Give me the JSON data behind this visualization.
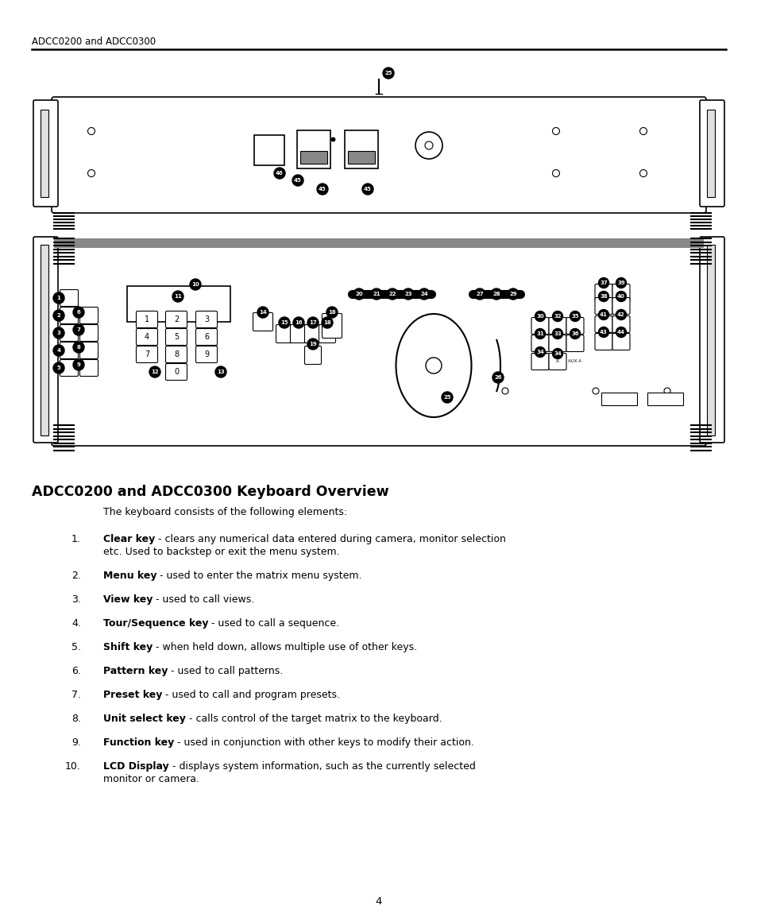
{
  "header_text": "ADCC0200 and ADCC0300",
  "section_title": "ADCC0200 and ADCC0300 Keyboard Overview",
  "intro_text": "The keyboard consists of the following elements:",
  "items": [
    {
      "num": "1.",
      "bold": "Clear key",
      "rest": " - clears any numerical data entered during camera, monitor selection\n   etc. Used to backstep or exit the menu system."
    },
    {
      "num": "2.",
      "bold": "Menu key",
      "rest": " - used to enter the matrix menu system."
    },
    {
      "num": "3.",
      "bold": "View key",
      "rest": " - used to call views."
    },
    {
      "num": "4.",
      "bold": "Tour/Sequence key",
      "rest": " - used to call a sequence."
    },
    {
      "num": "5.",
      "bold": "Shift key",
      "rest": " - when held down, allows multiple use of other keys."
    },
    {
      "num": "6.",
      "bold": "Pattern key",
      "rest": " - used to call patterns."
    },
    {
      "num": "7.",
      "bold": "Preset key",
      "rest": " - used to call and program presets."
    },
    {
      "num": "8.",
      "bold": "Unit select key",
      "rest": " - calls control of the target matrix to the keyboard."
    },
    {
      "num": "9.",
      "bold": "Function key",
      "rest": " - used in conjunction with other keys to modify their action."
    },
    {
      "num": "10.",
      "bold": "LCD Display",
      "rest": " - displays system information, such as the currently selected\n   monitor or camera."
    }
  ],
  "page_number": "4",
  "bg_color": "#ffffff",
  "text_color": "#000000"
}
